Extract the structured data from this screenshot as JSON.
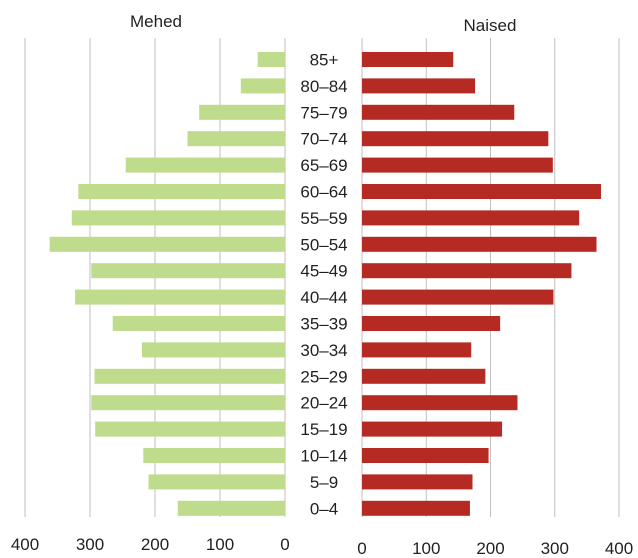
{
  "chart_data": {
    "type": "bar",
    "orientation": "horizontal",
    "layout": "population-pyramid",
    "categories": [
      "0–4",
      "5–9",
      "10–14",
      "15–19",
      "20–24",
      "25–29",
      "30–34",
      "35–39",
      "40–44",
      "45–49",
      "50–54",
      "55–59",
      "60–64",
      "65–69",
      "70–74",
      "75–79",
      "80–84",
      "85+"
    ],
    "series": [
      {
        "name": "Mehed",
        "side": "left",
        "color": "#bedc8c",
        "values": [
          165,
          210,
          218,
          292,
          298,
          293,
          220,
          265,
          323,
          298,
          362,
          328,
          318,
          245,
          150,
          132,
          68,
          42
        ]
      },
      {
        "name": "Naised",
        "side": "right",
        "color": "#b52a23",
        "values": [
          168,
          172,
          197,
          218,
          242,
          192,
          170,
          215,
          298,
          326,
          365,
          338,
          372,
          297,
          290,
          237,
          176,
          142
        ]
      }
    ],
    "xlim": [
      0,
      400
    ],
    "left_ticks": [
      "400",
      "300",
      "200",
      "100",
      "0"
    ],
    "right_ticks": [
      "0",
      "100",
      "200",
      "300",
      "400"
    ],
    "grid": true,
    "gridline_color": "#bfbfbf"
  }
}
